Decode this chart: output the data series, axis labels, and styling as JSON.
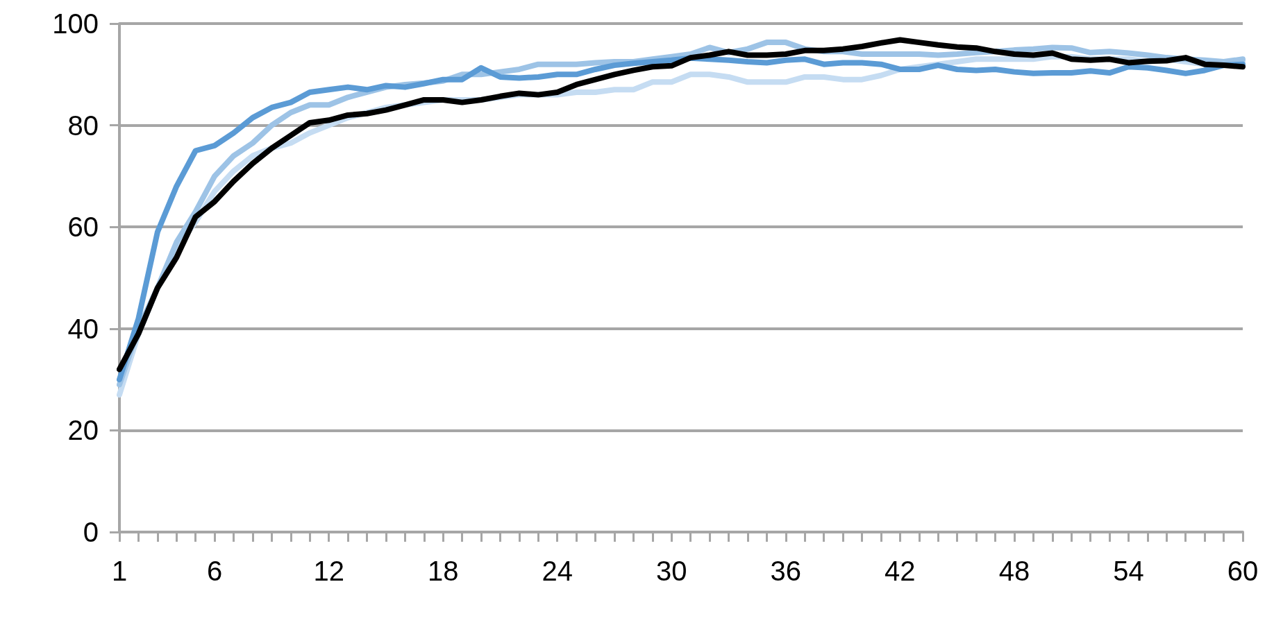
{
  "chart_data": {
    "type": "line",
    "categories": [
      "1",
      null,
      null,
      null,
      null,
      "6",
      null,
      null,
      null,
      null,
      null,
      "12",
      null,
      null,
      null,
      null,
      null,
      "18",
      null,
      null,
      null,
      null,
      null,
      "24",
      null,
      null,
      null,
      null,
      null,
      "30",
      null,
      null,
      null,
      null,
      null,
      "36",
      null,
      null,
      null,
      null,
      null,
      "42",
      null,
      null,
      null,
      null,
      null,
      "48",
      null,
      null,
      null,
      null,
      null,
      "54",
      null,
      null,
      null,
      null,
      null,
      "60"
    ],
    "series": [
      {
        "color": "#c5dcf2",
        "values": [
          27,
          39,
          48,
          56,
          61,
          67,
          71,
          74,
          75.5,
          76.5,
          78.5,
          80,
          81.5,
          82.5,
          83.5,
          84,
          84.5,
          85,
          85,
          85,
          85.5,
          86,
          86,
          86,
          86.5,
          86.5,
          87,
          87,
          88.5,
          88.5,
          90,
          90,
          89.5,
          88.5,
          88.5,
          88.5,
          89.5,
          89.5,
          89,
          89,
          89.8,
          91,
          91.5,
          92,
          92.5,
          93,
          93,
          93,
          93,
          93.5,
          93.5,
          93,
          93,
          93,
          92.5,
          93,
          92.5,
          92,
          92.5,
          92.5
        ]
      },
      {
        "color": "#9dc3e6",
        "values": [
          29,
          40,
          48,
          57,
          63,
          70,
          74,
          76.5,
          80,
          82.5,
          84,
          84,
          85.5,
          86.5,
          87.5,
          88,
          88.3,
          88.7,
          90,
          90,
          90.5,
          91,
          92,
          92,
          92,
          92.3,
          92.5,
          92.5,
          93,
          93.5,
          94,
          95.3,
          94.3,
          95,
          96.3,
          96.3,
          95,
          94.5,
          94.5,
          94,
          94,
          94,
          94,
          93.8,
          94,
          94.3,
          94.5,
          94.8,
          95,
          95.3,
          95.2,
          94.3,
          94.5,
          94.2,
          93.8,
          93.3,
          93,
          92.8,
          92.5,
          93
        ]
      },
      {
        "color": "#5b9bd5",
        "values": [
          30,
          42,
          59,
          68,
          75,
          76,
          78.5,
          81.5,
          83.5,
          84.5,
          86.5,
          87,
          87.5,
          87,
          87.8,
          87.5,
          88.2,
          89,
          89,
          91.3,
          89.5,
          89.3,
          89.5,
          90,
          90,
          91,
          91.8,
          92.2,
          92.5,
          92.8,
          93.2,
          93,
          92.8,
          92.5,
          92.3,
          92.8,
          93,
          92,
          92.3,
          92.3,
          92,
          91,
          91,
          91.8,
          91,
          90.8,
          91,
          90.5,
          90.2,
          90.3,
          90.3,
          90.7,
          90.3,
          91.5,
          91.3,
          90.8,
          90.2,
          90.8,
          91.8,
          92
        ]
      },
      {
        "color": "#000000",
        "values": [
          32,
          39,
          48,
          54,
          62,
          65,
          69,
          72.5,
          75.5,
          78,
          80.5,
          81,
          82,
          82.3,
          83,
          84,
          85,
          85,
          84.5,
          85,
          85.7,
          86.3,
          86,
          86.5,
          88,
          89,
          90,
          90.8,
          91.5,
          91.7,
          93.3,
          93.8,
          94.5,
          93.8,
          93.8,
          94,
          94.7,
          94.7,
          95,
          95.5,
          96.2,
          96.8,
          96.3,
          95.8,
          95.4,
          95.2,
          94.5,
          94,
          93.8,
          94.2,
          93,
          92.8,
          93,
          92.3,
          92.6,
          92.7,
          93.3,
          92,
          91.8,
          91.5
        ]
      }
    ],
    "ylim": [
      0,
      100
    ],
    "yticks": [
      0,
      20,
      40,
      60,
      80,
      100
    ],
    "grid": "y",
    "marker": "none",
    "line_style": "solid"
  }
}
